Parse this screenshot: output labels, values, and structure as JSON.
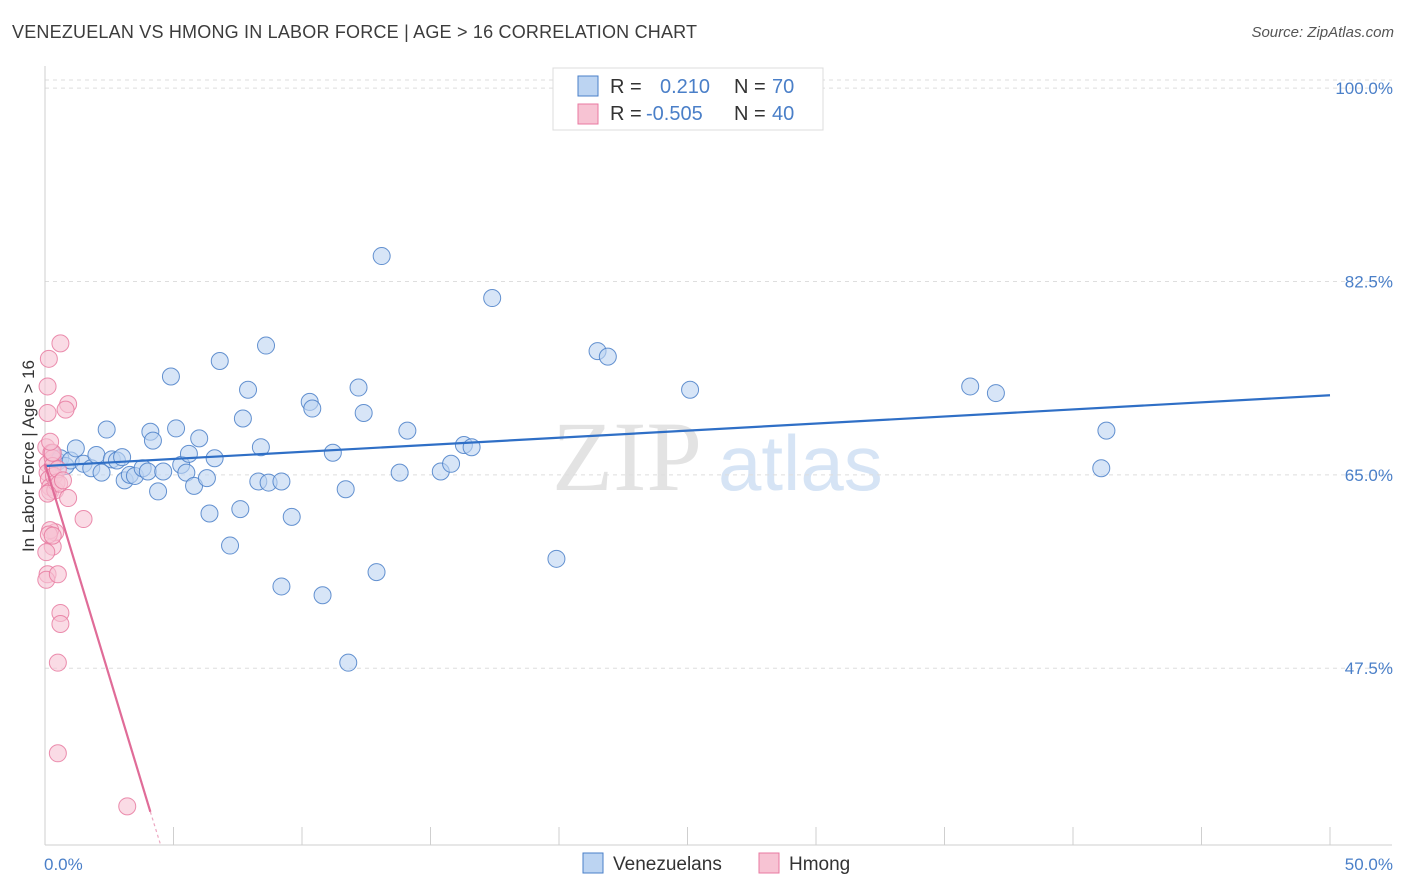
{
  "header": {
    "title": "VENEZUELAN VS HMONG IN LABOR FORCE | AGE > 16 CORRELATION CHART",
    "source": "Source: ZipAtlas.com"
  },
  "watermark": {
    "zip": "ZIP",
    "atlas": "atlas"
  },
  "colors": {
    "blue": "#4a7fc8",
    "blue_fill": "#bcd4f2",
    "blue_line": "#2f6fc6",
    "pink": "#e87aa0",
    "pink_fill": "#f7c3d3",
    "pink_line": "#e06c98"
  },
  "legend": {
    "rows": [
      {
        "r_label": "R =",
        "r_value": "0.210",
        "n_label": "N =",
        "n_value": "70"
      },
      {
        "r_label": "R =",
        "r_value": "-0.505",
        "n_label": "N =",
        "n_value": "40"
      }
    ]
  },
  "chart_data": {
    "type": "scatter",
    "title": "VENEZUELAN VS HMONG IN LABOR FORCE | AGE > 16 CORRELATION CHART",
    "xlabel": "",
    "ylabel": "In Labor Force | Age > 16",
    "xlim": [
      0,
      50
    ],
    "ylim": [
      31.5,
      102
    ],
    "x_tick_labels": [
      "0.0%",
      "50.0%"
    ],
    "y_ticks": [
      47.5,
      65.0,
      82.5,
      100.0
    ],
    "y_tick_labels": [
      "47.5%",
      "65.0%",
      "82.5%",
      "100.0%"
    ],
    "legend_entries": [
      "Venezuelans",
      "Hmong"
    ],
    "series": [
      {
        "name": "Venezuelans",
        "points": [
          [
            0.3,
            66.9
          ],
          [
            0.5,
            66.2
          ],
          [
            0.6,
            66.5
          ],
          [
            0.8,
            65.8
          ],
          [
            1.0,
            66.3
          ],
          [
            1.2,
            67.4
          ],
          [
            1.5,
            66.0
          ],
          [
            1.8,
            65.6
          ],
          [
            2.0,
            66.8
          ],
          [
            2.2,
            65.2
          ],
          [
            2.4,
            69.1
          ],
          [
            2.6,
            66.4
          ],
          [
            2.8,
            66.3
          ],
          [
            3.0,
            66.6
          ],
          [
            3.1,
            64.5
          ],
          [
            3.3,
            65.0
          ],
          [
            3.5,
            64.9
          ],
          [
            3.8,
            65.6
          ],
          [
            4.0,
            65.3
          ],
          [
            4.1,
            68.9
          ],
          [
            4.2,
            68.1
          ],
          [
            4.4,
            63.5
          ],
          [
            4.6,
            65.3
          ],
          [
            4.9,
            73.9
          ],
          [
            5.1,
            69.2
          ],
          [
            5.3,
            65.9
          ],
          [
            5.5,
            65.2
          ],
          [
            5.6,
            66.9
          ],
          [
            5.8,
            64.0
          ],
          [
            6.0,
            68.3
          ],
          [
            6.3,
            64.7
          ],
          [
            6.4,
            61.5
          ],
          [
            6.6,
            66.5
          ],
          [
            6.8,
            75.3
          ],
          [
            7.2,
            58.6
          ],
          [
            7.6,
            61.9
          ],
          [
            7.7,
            70.1
          ],
          [
            7.9,
            72.7
          ],
          [
            8.3,
            64.4
          ],
          [
            8.4,
            67.5
          ],
          [
            8.6,
            76.7
          ],
          [
            8.7,
            64.3
          ],
          [
            9.2,
            64.4
          ],
          [
            9.2,
            54.9
          ],
          [
            9.6,
            61.2
          ],
          [
            10.3,
            71.6
          ],
          [
            10.4,
            71.0
          ],
          [
            10.8,
            54.1
          ],
          [
            11.2,
            67.0
          ],
          [
            11.7,
            63.7
          ],
          [
            11.8,
            48.0
          ],
          [
            12.2,
            72.9
          ],
          [
            12.4,
            70.6
          ],
          [
            12.9,
            56.2
          ],
          [
            13.1,
            84.8
          ],
          [
            13.8,
            65.2
          ],
          [
            14.1,
            69.0
          ],
          [
            15.4,
            65.3
          ],
          [
            15.8,
            66.0
          ],
          [
            16.3,
            67.7
          ],
          [
            16.6,
            67.5
          ],
          [
            17.4,
            81.0
          ],
          [
            19.9,
            57.4
          ],
          [
            21.5,
            76.2
          ],
          [
            21.9,
            75.7
          ],
          [
            25.1,
            72.7
          ],
          [
            36.0,
            73.0
          ],
          [
            37.0,
            72.4
          ],
          [
            41.3,
            69.0
          ],
          [
            41.1,
            65.6
          ]
        ]
      },
      {
        "name": "Hmong",
        "points": [
          [
            0.05,
            67.5
          ],
          [
            0.1,
            66.0
          ],
          [
            0.1,
            65.2
          ],
          [
            0.15,
            64.6
          ],
          [
            0.2,
            63.9
          ],
          [
            0.2,
            63.5
          ],
          [
            0.25,
            67.0
          ],
          [
            0.3,
            66.5
          ],
          [
            0.3,
            65.8
          ],
          [
            0.35,
            64.9
          ],
          [
            0.4,
            63.6
          ],
          [
            0.45,
            64.3
          ],
          [
            0.5,
            65.5
          ],
          [
            0.55,
            64.2
          ],
          [
            0.3,
            58.5
          ],
          [
            0.4,
            59.8
          ],
          [
            0.2,
            60.0
          ],
          [
            0.15,
            59.6
          ],
          [
            0.3,
            59.5
          ],
          [
            0.1,
            56.0
          ],
          [
            0.05,
            55.5
          ],
          [
            0.5,
            56.0
          ],
          [
            0.6,
            52.5
          ],
          [
            0.6,
            51.5
          ],
          [
            0.5,
            48.0
          ],
          [
            0.5,
            39.8
          ],
          [
            0.15,
            75.5
          ],
          [
            0.6,
            76.9
          ],
          [
            0.1,
            73.0
          ],
          [
            0.1,
            70.6
          ],
          [
            0.9,
            71.4
          ],
          [
            0.8,
            70.9
          ],
          [
            0.9,
            62.9
          ],
          [
            1.5,
            61.0
          ],
          [
            0.1,
            63.3
          ],
          [
            0.05,
            58.0
          ],
          [
            0.3,
            67.0
          ],
          [
            0.2,
            68.0
          ],
          [
            0.7,
            64.5
          ],
          [
            3.2,
            35.0
          ]
        ]
      }
    ],
    "trend_lines": [
      {
        "name": "Venezuelans",
        "from": [
          0,
          65.8
        ],
        "to": [
          50,
          72.2
        ]
      },
      {
        "name": "Hmong",
        "from": [
          0,
          66.0
        ],
        "to": [
          4.1,
          34.5
        ]
      },
      {
        "name": "Hmong",
        "style": "dashed",
        "from": [
          4.1,
          34.5
        ],
        "to": [
          4.5,
          31.5
        ]
      }
    ]
  }
}
